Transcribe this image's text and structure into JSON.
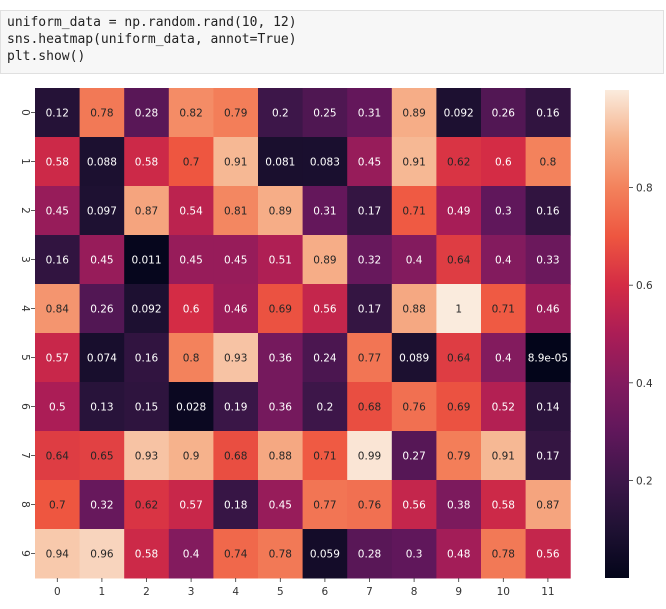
{
  "code": {
    "line1": "uniform_data = np.random.rand(10, 12)",
    "line2": "sns.heatmap(uniform_data, annot=True)",
    "line3": "plt.show()"
  },
  "chart_data": {
    "type": "heatmap",
    "title": "",
    "xlabel": "",
    "ylabel": "",
    "x_ticks": [
      "0",
      "1",
      "2",
      "3",
      "4",
      "5",
      "6",
      "7",
      "8",
      "9",
      "10",
      "11"
    ],
    "y_ticks": [
      "0",
      "1",
      "2",
      "3",
      "4",
      "5",
      "6",
      "7",
      "8",
      "9"
    ],
    "values": [
      [
        0.12,
        0.78,
        0.28,
        0.82,
        0.79,
        0.2,
        0.25,
        0.31,
        0.89,
        0.092,
        0.26,
        0.16
      ],
      [
        0.58,
        0.088,
        0.58,
        0.7,
        0.91,
        0.081,
        0.083,
        0.45,
        0.91,
        0.62,
        0.6,
        0.8
      ],
      [
        0.45,
        0.097,
        0.87,
        0.54,
        0.81,
        0.89,
        0.31,
        0.17,
        0.71,
        0.49,
        0.3,
        0.16
      ],
      [
        0.16,
        0.45,
        0.011,
        0.45,
        0.45,
        0.51,
        0.89,
        0.32,
        0.4,
        0.64,
        0.4,
        0.33
      ],
      [
        0.84,
        0.26,
        0.092,
        0.6,
        0.46,
        0.69,
        0.56,
        0.17,
        0.88,
        1,
        0.71,
        0.46
      ],
      [
        0.57,
        0.074,
        0.16,
        0.8,
        0.93,
        0.36,
        0.24,
        0.77,
        0.089,
        0.64,
        0.4,
        8.9e-05
      ],
      [
        0.5,
        0.13,
        0.15,
        0.028,
        0.19,
        0.36,
        0.2,
        0.68,
        0.76,
        0.69,
        0.52,
        0.14
      ],
      [
        0.64,
        0.65,
        0.93,
        0.9,
        0.68,
        0.88,
        0.71,
        0.99,
        0.27,
        0.79,
        0.91,
        0.17
      ],
      [
        0.7,
        0.32,
        0.62,
        0.57,
        0.18,
        0.45,
        0.77,
        0.76,
        0.56,
        0.38,
        0.58,
        0.87
      ],
      [
        0.94,
        0.96,
        0.58,
        0.4,
        0.74,
        0.78,
        0.059,
        0.28,
        0.3,
        0.48,
        0.78,
        0.56
      ]
    ],
    "annotations": [
      [
        "0.12",
        "0.78",
        "0.28",
        "0.82",
        "0.79",
        "0.2",
        "0.25",
        "0.31",
        "0.89",
        "0.092",
        "0.26",
        "0.16"
      ],
      [
        "0.58",
        "0.088",
        "0.58",
        "0.7",
        "0.91",
        "0.081",
        "0.083",
        "0.45",
        "0.91",
        "0.62",
        "0.6",
        "0.8"
      ],
      [
        "0.45",
        "0.097",
        "0.87",
        "0.54",
        "0.81",
        "0.89",
        "0.31",
        "0.17",
        "0.71",
        "0.49",
        "0.3",
        "0.16"
      ],
      [
        "0.16",
        "0.45",
        "0.011",
        "0.45",
        "0.45",
        "0.51",
        "0.89",
        "0.32",
        "0.4",
        "0.64",
        "0.4",
        "0.33"
      ],
      [
        "0.84",
        "0.26",
        "0.092",
        "0.6",
        "0.46",
        "0.69",
        "0.56",
        "0.17",
        "0.88",
        "1",
        "0.71",
        "0.46"
      ],
      [
        "0.57",
        "0.074",
        "0.16",
        "0.8",
        "0.93",
        "0.36",
        "0.24",
        "0.77",
        "0.089",
        "0.64",
        "0.4",
        "8.9e-05"
      ],
      [
        "0.5",
        "0.13",
        "0.15",
        "0.028",
        "0.19",
        "0.36",
        "0.2",
        "0.68",
        "0.76",
        "0.69",
        "0.52",
        "0.14"
      ],
      [
        "0.64",
        "0.65",
        "0.93",
        "0.9",
        "0.68",
        "0.88",
        "0.71",
        "0.99",
        "0.27",
        "0.79",
        "0.91",
        "0.17"
      ],
      [
        "0.7",
        "0.32",
        "0.62",
        "0.57",
        "0.18",
        "0.45",
        "0.77",
        "0.76",
        "0.56",
        "0.38",
        "0.58",
        "0.87"
      ],
      [
        "0.94",
        "0.96",
        "0.58",
        "0.4",
        "0.74",
        "0.78",
        "0.059",
        "0.28",
        "0.3",
        "0.48",
        "0.78",
        "0.56"
      ]
    ],
    "colormap": "rocket",
    "vmin": 0,
    "vmax": 1,
    "colorbar": {
      "ticks": [
        0.2,
        0.4,
        0.6,
        0.8
      ],
      "tick_labels": [
        "0.2",
        "0.4",
        "0.6",
        "0.8"
      ]
    }
  }
}
